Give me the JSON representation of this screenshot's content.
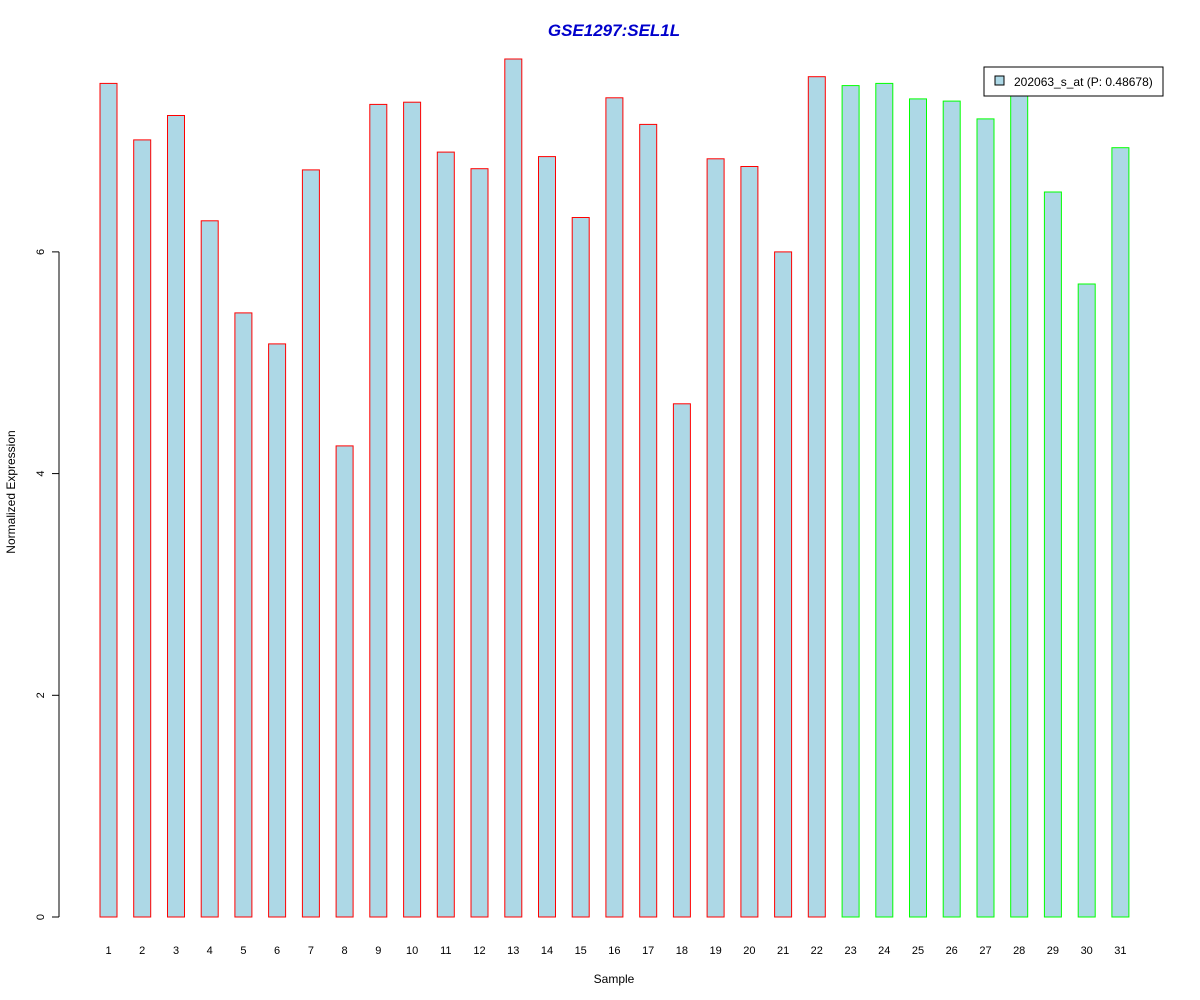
{
  "chart_data": {
    "type": "bar",
    "title": "GSE1297:SEL1L",
    "xlabel": "Sample",
    "ylabel": "Normalized Expression",
    "categories": [
      "1",
      "2",
      "3",
      "4",
      "5",
      "6",
      "7",
      "8",
      "9",
      "10",
      "11",
      "12",
      "13",
      "14",
      "15",
      "16",
      "17",
      "18",
      "19",
      "20",
      "21",
      "22",
      "23",
      "24",
      "25",
      "26",
      "27",
      "28",
      "29",
      "30",
      "31"
    ],
    "values": [
      7.52,
      7.01,
      7.23,
      6.28,
      5.45,
      5.17,
      6.74,
      4.25,
      7.33,
      7.35,
      6.9,
      6.75,
      7.74,
      6.86,
      6.31,
      7.39,
      7.15,
      4.63,
      6.84,
      6.77,
      6.0,
      7.58,
      7.5,
      7.52,
      7.38,
      7.36,
      7.2,
      7.47,
      6.54,
      5.71,
      6.94
    ],
    "groups": [
      1,
      1,
      1,
      1,
      1,
      1,
      1,
      1,
      1,
      1,
      1,
      1,
      1,
      1,
      1,
      1,
      1,
      1,
      1,
      1,
      1,
      1,
      2,
      2,
      2,
      2,
      2,
      2,
      2,
      2,
      2
    ],
    "ylim": [
      0,
      7.74
    ],
    "yticks": [
      0,
      2,
      4,
      6
    ],
    "legend": {
      "position": "top-right",
      "entries": [
        {
          "label": "202063_s_at (P: 0.48678)",
          "color": "#add8e6"
        }
      ]
    },
    "colors": {
      "title": "#0000cc",
      "bar_fill": "#add8e6",
      "group1_border": "#ff0000",
      "group2_border": "#00ff00",
      "axis": "#000000"
    },
    "grid": false
  }
}
